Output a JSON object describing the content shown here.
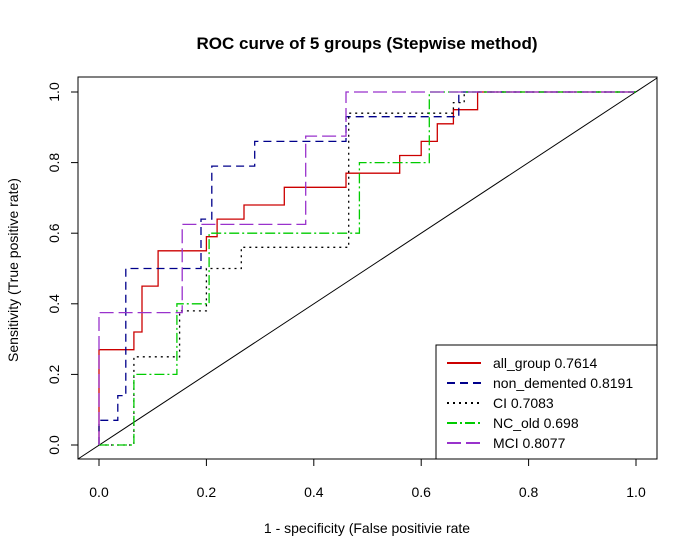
{
  "chart_data": {
    "type": "line",
    "title": "ROC curve of 5 groups (Stepwise method)",
    "xlabel": "1 - specificity (False positivie rate",
    "ylabel": "Sensitivity (True positive rate)",
    "xlim": [
      0,
      1
    ],
    "ylim": [
      0,
      1
    ],
    "xticks": [
      "0.0",
      "0.2",
      "0.4",
      "0.6",
      "0.8",
      "1.0"
    ],
    "yticks": [
      "0.0",
      "0.2",
      "0.4",
      "0.6",
      "0.8",
      "1.0"
    ],
    "grid": false,
    "legend_position": "bottom-right",
    "reference_line": {
      "x": [
        0,
        1
      ],
      "y": [
        0,
        1
      ],
      "color": "#000000"
    },
    "series": [
      {
        "name": "all_group 0.7614",
        "color": "#cc0000",
        "dash": "solid",
        "points": [
          [
            0,
            0
          ],
          [
            0,
            0.27
          ],
          [
            0.065,
            0.27
          ],
          [
            0.065,
            0.32
          ],
          [
            0.08,
            0.32
          ],
          [
            0.08,
            0.45
          ],
          [
            0.11,
            0.45
          ],
          [
            0.11,
            0.55
          ],
          [
            0.2,
            0.55
          ],
          [
            0.2,
            0.59
          ],
          [
            0.22,
            0.59
          ],
          [
            0.22,
            0.64
          ],
          [
            0.27,
            0.64
          ],
          [
            0.27,
            0.68
          ],
          [
            0.345,
            0.68
          ],
          [
            0.345,
            0.73
          ],
          [
            0.46,
            0.73
          ],
          [
            0.46,
            0.77
          ],
          [
            0.56,
            0.77
          ],
          [
            0.56,
            0.82
          ],
          [
            0.6,
            0.82
          ],
          [
            0.6,
            0.86
          ],
          [
            0.63,
            0.86
          ],
          [
            0.63,
            0.91
          ],
          [
            0.66,
            0.91
          ],
          [
            0.66,
            0.95
          ],
          [
            0.705,
            0.95
          ],
          [
            0.705,
            1
          ],
          [
            1,
            1
          ]
        ]
      },
      {
        "name": "non_demented 0.8191",
        "color": "#00008b",
        "dash": "8,5",
        "points": [
          [
            0,
            0
          ],
          [
            0,
            0.07
          ],
          [
            0.035,
            0.07
          ],
          [
            0.035,
            0.14
          ],
          [
            0.05,
            0.14
          ],
          [
            0.05,
            0.5
          ],
          [
            0.19,
            0.5
          ],
          [
            0.19,
            0.64
          ],
          [
            0.21,
            0.64
          ],
          [
            0.21,
            0.79
          ],
          [
            0.29,
            0.79
          ],
          [
            0.29,
            0.86
          ],
          [
            0.46,
            0.86
          ],
          [
            0.46,
            0.93
          ],
          [
            0.67,
            0.93
          ],
          [
            0.67,
            1
          ],
          [
            1,
            1
          ]
        ]
      },
      {
        "name": "CI 0.7083",
        "color": "#000000",
        "dash": "2,4",
        "points": [
          [
            0,
            0
          ],
          [
            0.065,
            0
          ],
          [
            0.065,
            0.25
          ],
          [
            0.15,
            0.25
          ],
          [
            0.15,
            0.38
          ],
          [
            0.2,
            0.38
          ],
          [
            0.2,
            0.5
          ],
          [
            0.265,
            0.5
          ],
          [
            0.265,
            0.56
          ],
          [
            0.465,
            0.56
          ],
          [
            0.465,
            0.94
          ],
          [
            0.66,
            0.94
          ],
          [
            0.66,
            0.97
          ],
          [
            0.68,
            0.97
          ],
          [
            0.68,
            1
          ],
          [
            1,
            1
          ]
        ]
      },
      {
        "name": "NC_old 0.698",
        "color": "#00cc00",
        "dash": "10,3,2,3",
        "points": [
          [
            0,
            0
          ],
          [
            0.065,
            0
          ],
          [
            0.065,
            0.2
          ],
          [
            0.145,
            0.2
          ],
          [
            0.145,
            0.4
          ],
          [
            0.205,
            0.4
          ],
          [
            0.205,
            0.6
          ],
          [
            0.485,
            0.6
          ],
          [
            0.485,
            0.8
          ],
          [
            0.615,
            0.8
          ],
          [
            0.615,
            1
          ],
          [
            1,
            1
          ]
        ]
      },
      {
        "name": "MCI 0.8077",
        "color": "#9932cc",
        "dash": "14,5",
        "points": [
          [
            0,
            0
          ],
          [
            0,
            0.375
          ],
          [
            0.155,
            0.375
          ],
          [
            0.155,
            0.625
          ],
          [
            0.385,
            0.625
          ],
          [
            0.385,
            0.875
          ],
          [
            0.46,
            0.875
          ],
          [
            0.46,
            1
          ],
          [
            1,
            1
          ]
        ]
      }
    ]
  }
}
